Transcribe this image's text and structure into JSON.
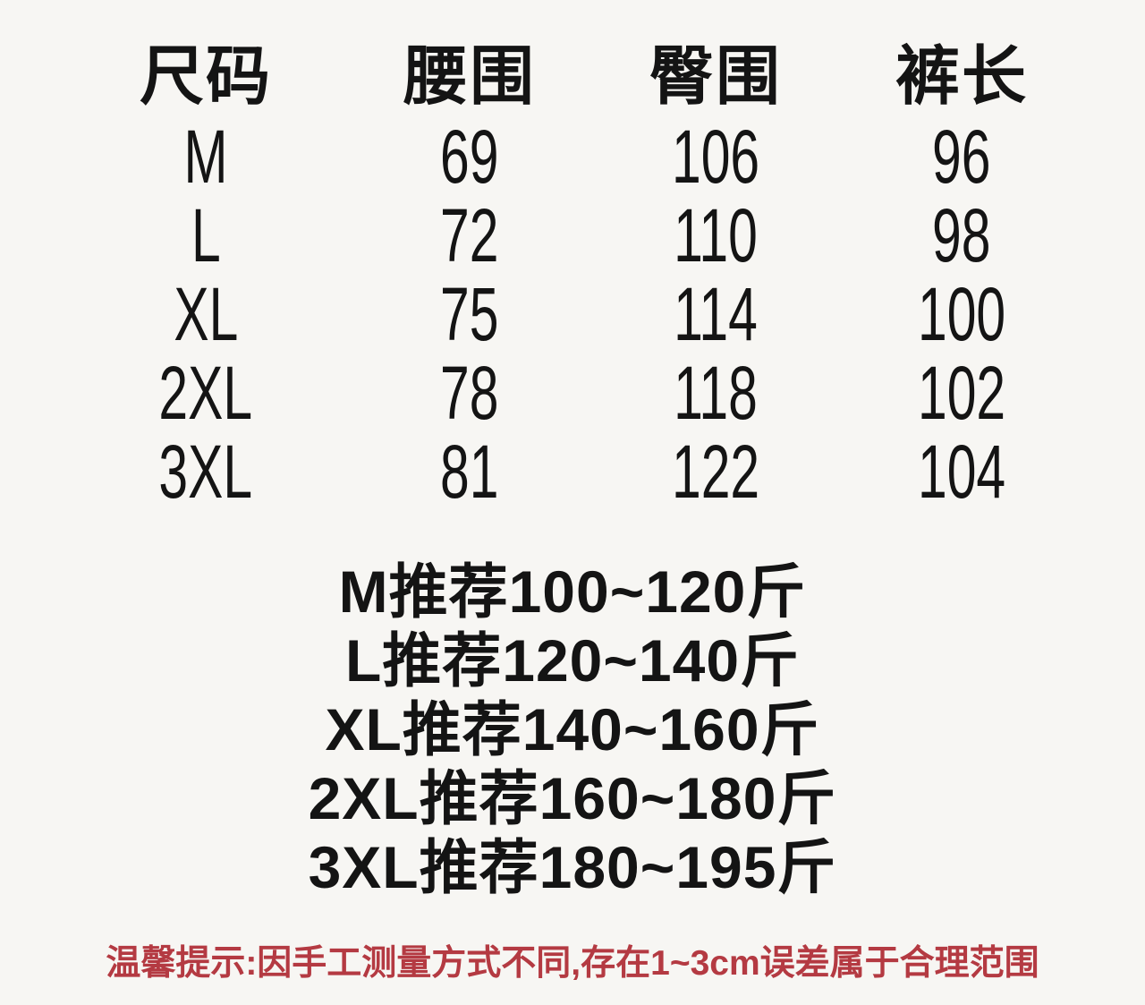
{
  "page": {
    "background": "#f7f6f3",
    "text_color": "#141414",
    "warning_color": "#b43a42"
  },
  "size_table": {
    "columns": [
      "尺码",
      "腰围",
      "臀围",
      "裤长"
    ],
    "rows": [
      {
        "size": "M",
        "waist": "69",
        "hip": "106",
        "length": "96"
      },
      {
        "size": "L",
        "waist": "72",
        "hip": "110",
        "length": "98"
      },
      {
        "size": "XL",
        "waist": "75",
        "hip": "114",
        "length": "100"
      },
      {
        "size": "2XL",
        "waist": "78",
        "hip": "118",
        "length": "102"
      },
      {
        "size": "3XL",
        "waist": "81",
        "hip": "122",
        "length": "104"
      }
    ]
  },
  "recommendations": [
    "M推荐100~120斤",
    "L推荐120~140斤",
    "XL推荐140~160斤",
    "2XL推荐160~180斤",
    "3XL推荐180~195斤"
  ],
  "footer": {
    "note": "温馨提示:因手工测量方式不同,存在1~3cm误差属于合理范围"
  },
  "chart_data": {
    "type": "table",
    "columns": [
      "尺码",
      "腰围",
      "臀围",
      "裤长"
    ],
    "rows": [
      [
        "M",
        69,
        106,
        96
      ],
      [
        "L",
        72,
        110,
        98
      ],
      [
        "XL",
        75,
        114,
        100
      ],
      [
        "2XL",
        78,
        118,
        102
      ],
      [
        "3XL",
        81,
        122,
        104
      ]
    ],
    "annotations": [
      "M推荐100~120斤",
      "L推荐120~140斤",
      "XL推荐140~160斤",
      "2XL推荐160~180斤",
      "3XL推荐180~195斤",
      "温馨提示:因手工测量方式不同,存在1~3cm误差属于合理范围"
    ],
    "layout": {
      "grid": false,
      "borders": false,
      "alignment": "center"
    }
  }
}
